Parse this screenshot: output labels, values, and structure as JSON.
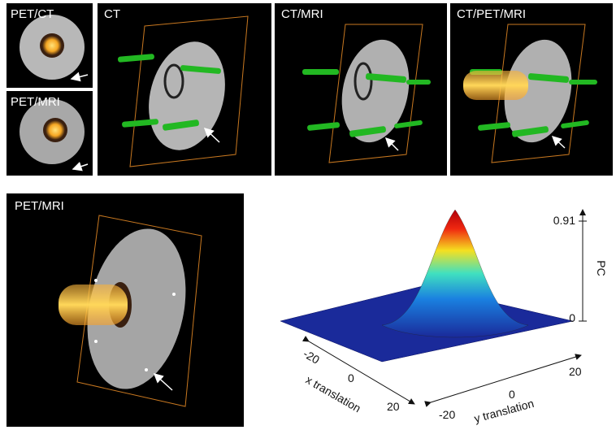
{
  "panels": [
    {
      "label": "PET/CT"
    },
    {
      "label": "PET/MRI"
    },
    {
      "label": "CT"
    },
    {
      "label": "CT/MRI"
    },
    {
      "label": "CT/PET/MRI"
    },
    {
      "label": "PET/MRI"
    }
  ],
  "plot": {
    "z_label": "PC",
    "z_ticks": [
      0,
      0.91
    ],
    "x_label": "x translation",
    "x_ticks": [
      -20,
      0,
      20
    ],
    "y_label": "y translation",
    "y_ticks": [
      -20,
      0,
      20
    ]
  }
}
